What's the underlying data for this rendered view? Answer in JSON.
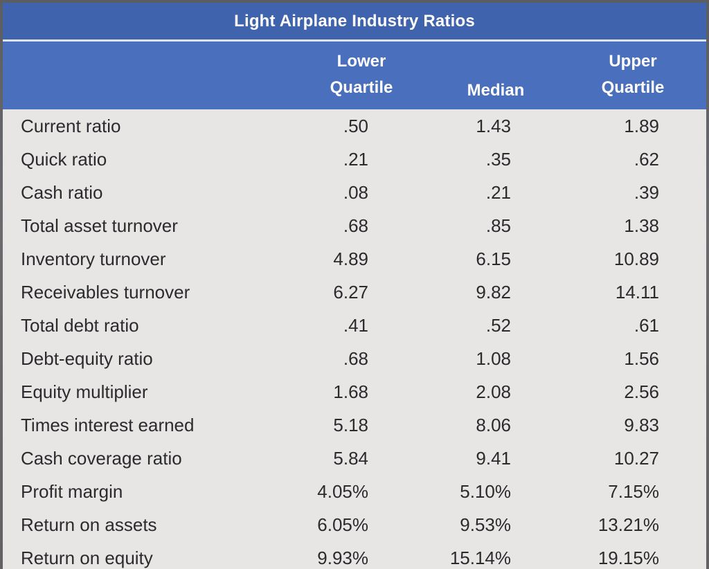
{
  "table": {
    "title": "Light Airplane Industry Ratios",
    "headers": {
      "lower": "Lower\nQuartile",
      "median": "Median",
      "upper": "Upper\nQuartile"
    },
    "rows": [
      {
        "label": "Current ratio",
        "lower": ".50",
        "median": "1.43",
        "upper": "1.89"
      },
      {
        "label": "Quick ratio",
        "lower": ".21",
        "median": ".35",
        "upper": ".62"
      },
      {
        "label": "Cash ratio",
        "lower": ".08",
        "median": ".21",
        "upper": ".39"
      },
      {
        "label": "Total asset turnover",
        "lower": ".68",
        "median": ".85",
        "upper": "1.38"
      },
      {
        "label": "Inventory turnover",
        "lower": "4.89",
        "median": "6.15",
        "upper": "10.89"
      },
      {
        "label": "Receivables turnover",
        "lower": "6.27",
        "median": "9.82",
        "upper": "14.11"
      },
      {
        "label": "Total debt ratio",
        "lower": ".41",
        "median": ".52",
        "upper": ".61"
      },
      {
        "label": "Debt-equity ratio",
        "lower": ".68",
        "median": "1.08",
        "upper": "1.56"
      },
      {
        "label": "Equity multiplier",
        "lower": "1.68",
        "median": "2.08",
        "upper": "2.56"
      },
      {
        "label": "Times interest earned",
        "lower": "5.18",
        "median": "8.06",
        "upper": "9.83"
      },
      {
        "label": "Cash coverage ratio",
        "lower": "5.84",
        "median": "9.41",
        "upper": "10.27"
      },
      {
        "label": "Profit margin",
        "lower": "4.05%",
        "median": "5.10%",
        "upper": "7.15%"
      },
      {
        "label": "Return on assets",
        "lower": "6.05%",
        "median": "9.53%",
        "upper": "13.21%"
      },
      {
        "label": "Return on equity",
        "lower": "9.93%",
        "median": "15.14%",
        "upper": "19.15%"
      }
    ]
  },
  "colors": {
    "title_bar": "#3f63ad",
    "header_band": "#4a6fbd",
    "table_background": "#e7e6e4",
    "text": "#2b2b2e"
  }
}
